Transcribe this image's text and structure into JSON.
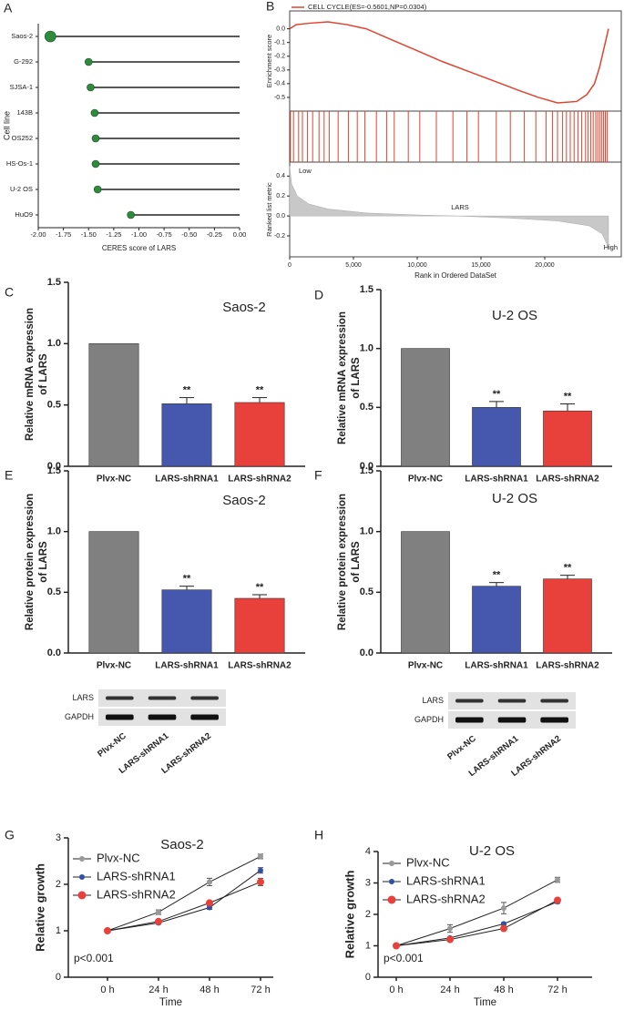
{
  "chart_data": [
    {
      "type": "lollipop",
      "panel": "A",
      "xlabel": "CERES score of LARS",
      "ylabel": "Cell line",
      "categories": [
        "Saos-2",
        "G-292",
        "SJSA-1",
        "143B",
        "OS252",
        "HS-Os-1",
        "U-2 OS",
        "HuO9"
      ],
      "values": [
        -1.88,
        -1.5,
        -1.48,
        -1.44,
        -1.43,
        -1.43,
        -1.41,
        -1.08
      ],
      "color": "#2e8b3e",
      "xlim": [
        -2,
        0
      ],
      "xticks": [
        {
          "value": -2,
          "label": "-2.00"
        },
        {
          "value": -1.75,
          "label": "-1.75"
        },
        {
          "value": -1.5,
          "label": "-1.50"
        },
        {
          "value": -1.25,
          "label": "-1.25"
        },
        {
          "value": -1,
          "label": "-1.00"
        },
        {
          "value": -0.75,
          "label": "-0.75"
        },
        {
          "value": -0.5,
          "label": "-0.50"
        },
        {
          "value": -0.25,
          "label": "-0.25"
        },
        {
          "value": 0,
          "label": "0.00"
        }
      ]
    },
    {
      "type": "gsea",
      "panel": "B",
      "title": "CELL CYCLE(ES=-0.5601,NP=0.0304)",
      "color": "#e0432f",
      "xlabel": "Rank in Ordered DataSet",
      "ylabel": "Enrichment score",
      "metric_ylabel": "Ranked list metric",
      "low_label": "Low",
      "high_label": "High",
      "gene_label": "LARS",
      "xlim": [
        0,
        26000
      ],
      "xticks": [
        0,
        {
          "value": 5000,
          "label": "5,000"
        },
        {
          "value": 10000,
          "label": "10,000"
        },
        {
          "value": 15000,
          "label": "15,000"
        },
        {
          "value": 20000,
          "label": "20,000"
        }
      ],
      "ylim": [
        -0.6,
        0.13
      ],
      "yticks": [
        {
          "value": 0,
          "label": "0.0"
        },
        -0.1,
        -0.2,
        -0.3,
        -0.4,
        -0.5
      ],
      "es_x": [
        0,
        500,
        1500,
        3000,
        4500,
        6000,
        8000,
        10000,
        12000,
        14000,
        16000,
        18000,
        19500,
        21000,
        22500,
        23300,
        23900,
        24300,
        24700,
        25000
      ],
      "es_values": [
        0,
        0.03,
        0.04,
        0.05,
        0.03,
        0,
        -0.08,
        -0.16,
        -0.24,
        -0.31,
        -0.38,
        -0.45,
        -0.5,
        -0.54,
        -0.53,
        -0.48,
        -0.4,
        -0.28,
        -0.12,
        0
      ],
      "hits": [
        60,
        300,
        700,
        1000,
        1400,
        1800,
        2300,
        2700,
        3100,
        3800,
        4600,
        5300,
        5900,
        6800,
        7600,
        8200,
        9300,
        10200,
        11500,
        12800,
        13900,
        14800,
        16200,
        17300,
        18400,
        19300,
        20100,
        20600,
        21000,
        21400,
        21700,
        22000,
        22300,
        22600,
        22900,
        23200,
        23400,
        23600,
        23800,
        24000,
        24150,
        24300,
        24450,
        24600,
        24750,
        24900
      ],
      "metric_ylim": [
        -0.41,
        0.54
      ],
      "metric_yticks": [
        0.4,
        0.2,
        {
          "value": 0,
          "label": "0.0"
        },
        -0.2
      ],
      "metric_x": [
        0,
        150,
        600,
        1500,
        3000,
        6000,
        10000,
        13000,
        17000,
        21000,
        23500,
        24500,
        25000
      ],
      "metric_values": [
        0.5,
        0.32,
        0.2,
        0.12,
        0.07,
        0.03,
        0.01,
        0,
        -0.02,
        -0.05,
        -0.1,
        -0.18,
        -0.32
      ]
    },
    {
      "type": "bar",
      "panel": "C",
      "title": "Saos-2",
      "ylabel": [
        "Relative mRNA expression",
        "of LARS"
      ],
      "categories": [
        "Plvx-NC",
        "LARS-shRNA1",
        "LARS-shRNA2"
      ],
      "values": [
        1,
        0.51,
        0.52
      ],
      "errors": [
        0,
        0.05,
        0.04
      ],
      "significance": [
        null,
        "**",
        "**"
      ],
      "colors": [
        "#808080",
        "#4558ad",
        "#e8413c"
      ],
      "ylim": [
        0,
        1.5
      ],
      "yticks": [
        {
          "value": 0,
          "label": "0.0"
        },
        0.5,
        {
          "value": 1,
          "label": "1.0"
        },
        1.5
      ]
    },
    {
      "type": "bar",
      "panel": "D",
      "title": "U-2 OS",
      "ylabel": [
        "Relative mRNA expression",
        "of LARS"
      ],
      "categories": [
        "Plvx-NC",
        "LARS-shRNA1",
        "LARS-shRNA2"
      ],
      "values": [
        1,
        0.5,
        0.47
      ],
      "errors": [
        0,
        0.05,
        0.06
      ],
      "significance": [
        null,
        "**",
        "**"
      ],
      "colors": [
        "#808080",
        "#4558ad",
        "#e8413c"
      ],
      "ylim": [
        0,
        1.5
      ],
      "yticks": [
        {
          "value": 0,
          "label": "0.0"
        },
        0.5,
        {
          "value": 1,
          "label": "1.0"
        },
        1.5
      ]
    },
    {
      "type": "bar",
      "panel": "E",
      "title": "Saos-2",
      "ylabel": [
        "Relative protein expression",
        "of LARS"
      ],
      "categories": [
        "Plvx-NC",
        "LARS-shRNA1",
        "LARS-shRNA2"
      ],
      "values": [
        1,
        0.52,
        0.45
      ],
      "errors": [
        0,
        0.03,
        0.03
      ],
      "significance": [
        null,
        "**",
        "**"
      ],
      "colors": [
        "#808080",
        "#4558ad",
        "#e8413c"
      ],
      "ylim": [
        0,
        1.5
      ],
      "yticks": [
        {
          "value": 0,
          "label": "0.0"
        },
        0.5,
        {
          "value": 1,
          "label": "1.0"
        },
        1.5
      ],
      "blot": {
        "rows": [
          "LARS",
          "GAPDH"
        ],
        "lanes": [
          "Plvx-NC",
          "LARS-shRNA1",
          "LARS-shRNA2"
        ]
      }
    },
    {
      "type": "bar",
      "panel": "F",
      "title": "U-2 OS",
      "ylabel": [
        "Relative protein expression",
        "of LARS"
      ],
      "categories": [
        "Plvx-NC",
        "LARS-shRNA1",
        "LARS-shRNA2"
      ],
      "values": [
        1,
        0.55,
        0.61
      ],
      "errors": [
        0,
        0.03,
        0.03
      ],
      "significance": [
        null,
        "**",
        "**"
      ],
      "colors": [
        "#808080",
        "#4558ad",
        "#e8413c"
      ],
      "ylim": [
        0,
        1.5
      ],
      "yticks": [
        {
          "value": 0,
          "label": "0.0"
        },
        0.5,
        {
          "value": 1,
          "label": "1.0"
        },
        1.5
      ],
      "blot": {
        "rows": [
          "LARS",
          "GAPDH"
        ],
        "lanes": [
          "Plvx-NC",
          "LARS-shRNA1",
          "LARS-shRNA2"
        ]
      }
    },
    {
      "type": "line",
      "panel": "G",
      "title": "Saos-2",
      "xlabel": "Time",
      "ylabel": "Relative growth",
      "annotation": "p<0.001",
      "categories": [
        "0 h",
        "24 h",
        "48 h",
        "72 h"
      ],
      "ylim": [
        0,
        3
      ],
      "yticks": [
        0,
        1,
        2,
        3
      ],
      "series": [
        {
          "name": "Plvx-NC",
          "color": "#999999",
          "values": [
            1,
            1.4,
            2.05,
            2.6
          ],
          "errors": [
            0,
            0.05,
            0.08,
            0.05
          ]
        },
        {
          "name": "LARS-shRNA1",
          "color": "#2f4fa8",
          "values": [
            1,
            1.17,
            1.5,
            2.3
          ],
          "errors": [
            0,
            0.03,
            0.04,
            0.06
          ]
        },
        {
          "name": "LARS-shRNA2",
          "color": "#e8413c",
          "values": [
            1,
            1.2,
            1.6,
            2.05
          ],
          "errors": [
            0,
            0.03,
            0.04,
            0.08
          ]
        }
      ]
    },
    {
      "type": "line",
      "panel": "H",
      "title": "U-2 OS",
      "xlabel": "Time",
      "ylabel": "Relative growth",
      "annotation": "p<0.001",
      "categories": [
        "0 h",
        "24 h",
        "48 h",
        "72 h"
      ],
      "ylim": [
        0,
        4
      ],
      "yticks": [
        0,
        1,
        2,
        3,
        4
      ],
      "series": [
        {
          "name": "Plvx-NC",
          "color": "#999999",
          "values": [
            1,
            1.55,
            2.2,
            3.1
          ],
          "errors": [
            0,
            0.12,
            0.18,
            0.08
          ]
        },
        {
          "name": "LARS-shRNA1",
          "color": "#2f4fa8",
          "values": [
            1,
            1.25,
            1.7,
            2.4
          ],
          "errors": [
            0,
            0.03,
            0.04,
            0.05
          ]
        },
        {
          "name": "LARS-shRNA2",
          "color": "#e8413c",
          "values": [
            1,
            1.2,
            1.55,
            2.45
          ],
          "errors": [
            0,
            0.03,
            0.04,
            0.06
          ]
        }
      ]
    }
  ]
}
